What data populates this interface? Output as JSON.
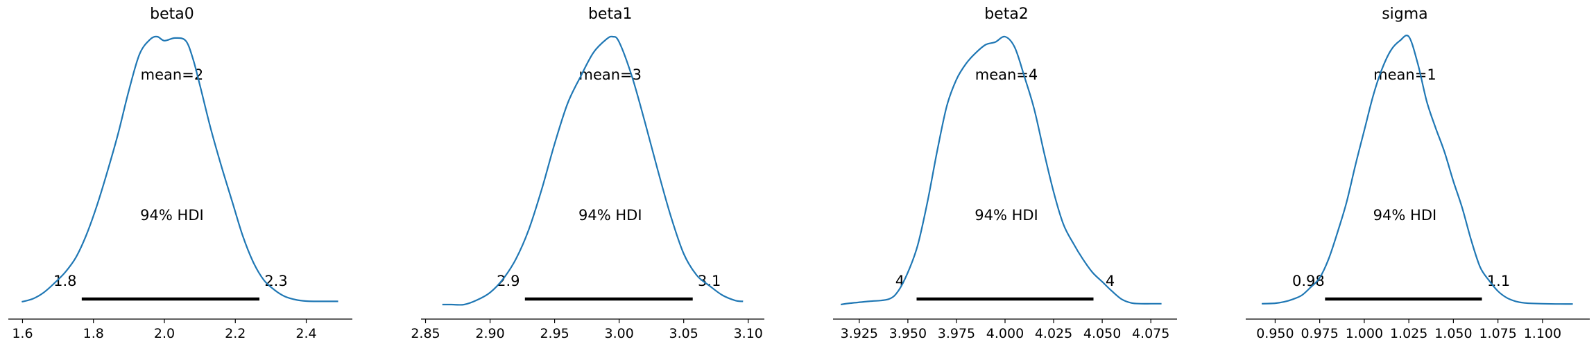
{
  "colors": {
    "kde_line": "#1f77b4",
    "hdi_bar": "#000000",
    "axis": "#000000",
    "background": "#ffffff"
  },
  "chart_data": [
    {
      "type": "line",
      "title": "beta0",
      "mean_label": "mean=2",
      "hdi_label": "94% HDI",
      "hdi": {
        "low": 1.767,
        "high": 2.268,
        "low_label": "1.8",
        "high_label": "2.3"
      },
      "xlim": [
        1.56,
        2.53
      ],
      "xticks": [
        1.6,
        1.8,
        2.0,
        2.2,
        2.4
      ],
      "xtick_labels": [
        "1.6",
        "1.8",
        "2.0",
        "2.2",
        "2.4"
      ],
      "x": [
        1.598,
        1.63,
        1.66,
        1.69,
        1.72,
        1.75,
        1.78,
        1.81,
        1.84,
        1.87,
        1.9,
        1.93,
        1.96,
        1.98,
        2.0,
        2.03,
        2.06,
        2.08,
        2.1,
        2.13,
        2.16,
        2.19,
        2.22,
        2.25,
        2.28,
        2.31,
        2.34,
        2.37,
        2.4,
        2.43,
        2.46,
        2.49
      ],
      "y": [
        0.01,
        0.022,
        0.045,
        0.08,
        0.12,
        0.175,
        0.26,
        0.37,
        0.5,
        0.64,
        0.8,
        0.935,
        0.99,
        1.0,
        0.985,
        0.995,
        0.985,
        0.92,
        0.82,
        0.66,
        0.52,
        0.39,
        0.26,
        0.16,
        0.092,
        0.055,
        0.03,
        0.018,
        0.013,
        0.012,
        0.012,
        0.012
      ]
    },
    {
      "type": "line",
      "title": "beta1",
      "mean_label": "mean=3",
      "hdi_label": "94% HDI",
      "hdi": {
        "low": 2.927,
        "high": 3.057,
        "low_label": "2.9",
        "high_label": "3.1"
      },
      "xlim": [
        2.8465,
        3.1125
      ],
      "xticks": [
        2.85,
        2.9,
        2.95,
        3.0,
        3.05,
        3.1
      ],
      "xtick_labels": [
        "2.85",
        "2.90",
        "2.95",
        "3.00",
        "3.05",
        "3.10"
      ],
      "x": [
        2.863,
        2.87,
        2.88,
        2.89,
        2.9,
        2.91,
        2.92,
        2.93,
        2.94,
        2.95,
        2.96,
        2.97,
        2.98,
        2.99,
        2.995,
        3.0,
        3.01,
        3.02,
        3.03,
        3.04,
        3.05,
        3.06,
        3.07,
        3.08,
        3.09,
        3.096
      ],
      "y": [
        0.0,
        0.0,
        0.0,
        0.017,
        0.045,
        0.095,
        0.17,
        0.28,
        0.43,
        0.6,
        0.75,
        0.85,
        0.94,
        0.99,
        1.0,
        0.98,
        0.85,
        0.68,
        0.5,
        0.33,
        0.19,
        0.11,
        0.07,
        0.035,
        0.015,
        0.012
      ]
    },
    {
      "type": "line",
      "title": "beta2",
      "mean_label": "mean=4",
      "hdi_label": "94% HDI",
      "hdi": {
        "low": 3.9545,
        "high": 4.0455,
        "low_label": "4",
        "high_label": "4"
      },
      "xlim": [
        3.9115,
        4.0885
      ],
      "xticks": [
        3.925,
        3.95,
        3.975,
        4.0,
        4.025,
        4.05,
        4.075
      ],
      "xtick_labels": [
        "3.925",
        "3.950",
        "3.975",
        "4.000",
        "4.025",
        "4.050",
        "4.075"
      ],
      "x": [
        3.9155,
        3.92,
        3.93,
        3.94,
        3.945,
        3.95,
        3.955,
        3.96,
        3.965,
        3.97,
        3.975,
        3.98,
        3.985,
        3.99,
        3.995,
        4.0,
        4.005,
        4.01,
        4.015,
        4.02,
        4.025,
        4.03,
        4.035,
        4.04,
        4.045,
        4.05,
        4.055,
        4.06,
        4.065,
        4.07,
        4.075,
        4.0805
      ],
      "y": [
        0.0,
        0.005,
        0.012,
        0.02,
        0.05,
        0.12,
        0.22,
        0.38,
        0.57,
        0.74,
        0.84,
        0.9,
        0.94,
        0.97,
        0.98,
        1.0,
        0.96,
        0.85,
        0.73,
        0.57,
        0.42,
        0.3,
        0.23,
        0.17,
        0.12,
        0.085,
        0.05,
        0.02,
        0.006,
        0.003,
        0.003,
        0.003
      ]
    },
    {
      "type": "line",
      "title": "sigma",
      "mean_label": "mean=1",
      "hdi_label": "94% HDI",
      "hdi": {
        "low": 0.978,
        "high": 1.066,
        "low_label": "0.98",
        "high_label": "1.1"
      },
      "xlim": [
        0.9335,
        1.1265
      ],
      "xticks": [
        0.95,
        0.975,
        1.0,
        1.025,
        1.05,
        1.075,
        1.1
      ],
      "xtick_labels": [
        "0.950",
        "0.975",
        "1.000",
        "1.025",
        "1.050",
        "1.075",
        "1.100"
      ],
      "x": [
        0.9425,
        0.95,
        0.955,
        0.96,
        0.965,
        0.97,
        0.975,
        0.98,
        0.985,
        0.99,
        0.995,
        1.0,
        1.005,
        1.01,
        1.015,
        1.02,
        1.025,
        1.03,
        1.035,
        1.04,
        1.045,
        1.05,
        1.055,
        1.06,
        1.065,
        1.07,
        1.075,
        1.08,
        1.085,
        1.09,
        1.1,
        1.11,
        1.117
      ],
      "y": [
        0.003,
        0.005,
        0.01,
        0.02,
        0.035,
        0.065,
        0.1,
        0.17,
        0.27,
        0.38,
        0.52,
        0.65,
        0.78,
        0.88,
        0.95,
        0.985,
        1.0,
        0.9,
        0.76,
        0.66,
        0.57,
        0.46,
        0.36,
        0.24,
        0.14,
        0.09,
        0.05,
        0.025,
        0.012,
        0.006,
        0.003,
        0.002,
        0.002
      ]
    }
  ]
}
